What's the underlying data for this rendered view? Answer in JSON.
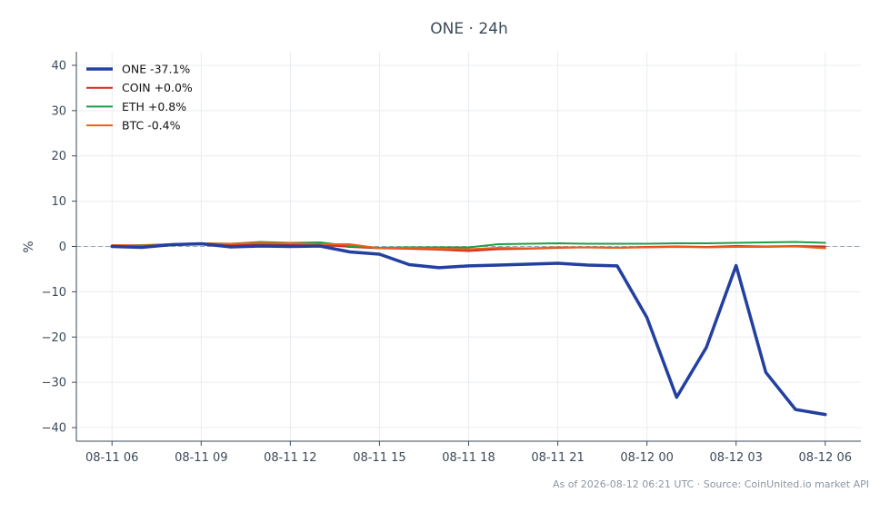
{
  "chart_data": {
    "type": "line",
    "title": "ONE · 24h",
    "xlabel": "",
    "ylabel": "%",
    "ylim": [
      -43,
      43
    ],
    "xlim": [
      -1.2,
      25.2
    ],
    "yticks": [
      40,
      30,
      20,
      10,
      0,
      -10,
      -20,
      -30,
      -40
    ],
    "ytick_labels": [
      "40",
      "30",
      "20",
      "10",
      "0",
      "−10",
      "−20",
      "−30",
      "−40"
    ],
    "xticks": [
      0,
      3,
      6,
      9,
      12,
      15,
      18,
      21,
      24
    ],
    "xtick_labels": [
      "08-11 06",
      "08-11 09",
      "08-11 12",
      "08-11 15",
      "08-11 18",
      "08-11 21",
      "08-12 00",
      "08-12 03",
      "08-12 06"
    ],
    "grid": true,
    "zero_line": "dashed",
    "legend_position": "top-left",
    "x": [
      0,
      1,
      2,
      3,
      4,
      5,
      6,
      7,
      8,
      9,
      10,
      11,
      12,
      13,
      14,
      15,
      16,
      17,
      18,
      19,
      20,
      21,
      22,
      23,
      24
    ],
    "series": [
      {
        "name": "ONE -37.1%",
        "color": "#2340a0",
        "width": 3.5,
        "values": [
          0.0,
          -0.2,
          0.4,
          0.6,
          -0.1,
          0.1,
          0.0,
          0.1,
          -1.2,
          -1.7,
          -4.0,
          -4.7,
          -4.3,
          -4.1,
          -3.9,
          -3.7,
          -4.1,
          -4.3,
          -15.7,
          -33.3,
          -22.3,
          -4.2,
          -27.8,
          -36.0,
          -37.1
        ]
      },
      {
        "name": "COIN +0.0%",
        "color": "#d42a1e",
        "width": 2,
        "values": [
          0.1,
          0.2,
          0.3,
          0.5,
          0.4,
          0.5,
          0.5,
          0.4,
          -0.1,
          -0.4,
          -0.5,
          -0.7,
          -1.0,
          -0.6,
          -0.5,
          -0.3,
          -0.2,
          -0.3,
          -0.1,
          0.0,
          -0.1,
          0.1,
          0.0,
          0.1,
          0.0
        ]
      },
      {
        "name": "ETH +0.8%",
        "color": "#1f9e48",
        "width": 2,
        "values": [
          0.2,
          0.3,
          0.5,
          0.7,
          0.6,
          1.0,
          0.8,
          0.9,
          0.1,
          -0.3,
          -0.2,
          -0.2,
          -0.2,
          0.5,
          0.6,
          0.7,
          0.6,
          0.6,
          0.6,
          0.7,
          0.7,
          0.8,
          0.9,
          1.0,
          0.8
        ]
      },
      {
        "name": "BTC -0.4%",
        "color": "#e8601a",
        "width": 2,
        "values": [
          0.3,
          0.2,
          0.4,
          0.7,
          0.6,
          0.8,
          0.7,
          0.5,
          0.5,
          -0.4,
          -0.3,
          -0.5,
          -0.6,
          -0.3,
          -0.4,
          -0.2,
          -0.2,
          -0.3,
          -0.2,
          -0.1,
          -0.2,
          -0.1,
          -0.1,
          0.0,
          -0.4
        ]
      }
    ],
    "footer": "As of 2026-08-12 06:21 UTC · Source: CoinUnited.io market API"
  }
}
